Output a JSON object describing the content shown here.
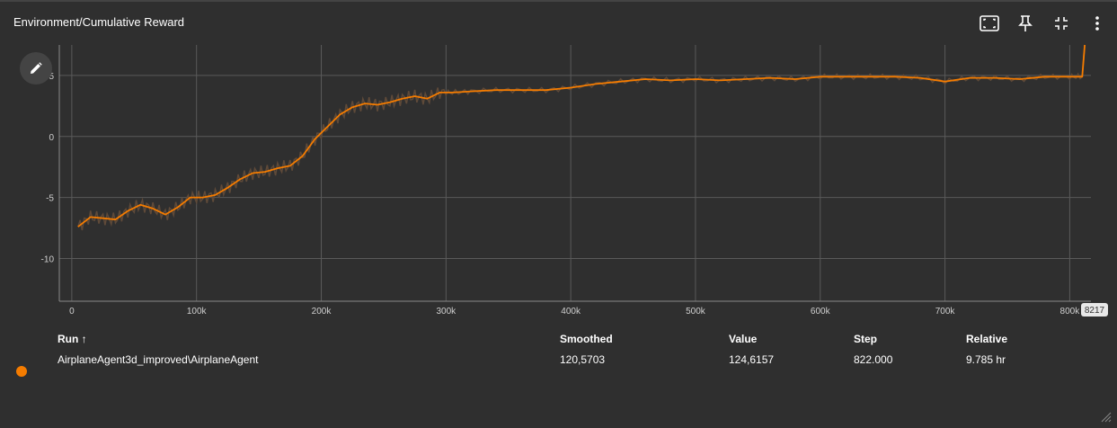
{
  "card": {
    "title": "Environment/Cumulative Reward"
  },
  "toolbar": {
    "icons": [
      "fit-domain-icon",
      "pin-icon",
      "fullscreen-exit-icon",
      "more-vert-icon"
    ]
  },
  "colors": {
    "background": "#2f2f2f",
    "accent": "#f57c00",
    "raw_line": "#5f4a39",
    "grid": "#5a5a5a"
  },
  "chart_data": {
    "type": "line",
    "xlim": [
      -10000,
      817000
    ],
    "ylim": [
      -13.5,
      7.5
    ],
    "x_ticks": [
      0,
      100000,
      200000,
      300000,
      400000,
      500000,
      600000,
      700000,
      800000
    ],
    "x_tick_labels": [
      "0",
      "100k",
      "200k",
      "300k",
      "400k",
      "500k",
      "600k",
      "700k",
      "800k"
    ],
    "y_ticks": [
      -10,
      -5,
      0,
      5
    ],
    "y_tick_labels": [
      "-10",
      "-5",
      "0",
      "5"
    ],
    "grid": true,
    "cursor_label": "8217",
    "series": [
      {
        "x": [
          5000,
          15000,
          25000,
          35000,
          45000,
          55000,
          65000,
          75000,
          85000,
          95000,
          105000,
          115000,
          125000,
          135000,
          145000,
          155000,
          165000,
          175000,
          185000,
          195000,
          205000,
          215000,
          225000,
          235000,
          245000,
          255000,
          265000,
          275000,
          285000,
          295000,
          305000,
          320000,
          340000,
          360000,
          380000,
          400000,
          420000,
          440000,
          460000,
          480000,
          500000,
          520000,
          540000,
          560000,
          580000,
          600000,
          620000,
          640000,
          660000,
          680000,
          700000,
          720000,
          740000,
          760000,
          780000,
          800000,
          810000,
          812000
        ],
        "values": [
          -7.4,
          -6.6,
          -6.7,
          -6.8,
          -6.1,
          -5.6,
          -5.9,
          -6.4,
          -5.8,
          -5.0,
          -5.0,
          -4.8,
          -4.2,
          -3.5,
          -3.0,
          -2.9,
          -2.6,
          -2.4,
          -1.6,
          -0.2,
          0.8,
          1.8,
          2.4,
          2.7,
          2.6,
          2.8,
          3.1,
          3.3,
          3.1,
          3.6,
          3.6,
          3.7,
          3.8,
          3.8,
          3.8,
          4.0,
          4.3,
          4.5,
          4.7,
          4.6,
          4.7,
          4.6,
          4.7,
          4.8,
          4.7,
          4.9,
          4.9,
          4.9,
          4.9,
          4.8,
          4.5,
          4.8,
          4.8,
          4.7,
          4.9,
          4.9,
          4.9,
          7.5
        ]
      }
    ]
  },
  "table": {
    "headers": {
      "run": "Run ↑",
      "smoothed": "Smoothed",
      "value": "Value",
      "step": "Step",
      "relative": "Relative"
    },
    "row": {
      "run": "AirplaneAgent3d_improved\\AirplaneAgent",
      "smoothed": "120,5703",
      "value": "124,6157",
      "step": "822.000",
      "relative": "9.785 hr"
    }
  }
}
